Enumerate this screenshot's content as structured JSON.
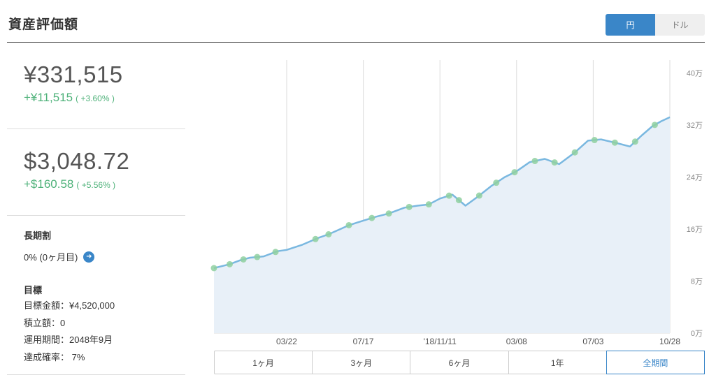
{
  "header": {
    "title": "資産評価額",
    "currency_options": [
      "円",
      "ドル"
    ],
    "currency_selected": "円"
  },
  "summary": {
    "yen": {
      "total": "¥331,515",
      "change": "+¥11,515",
      "change_pct": "( +3.60% )"
    },
    "usd": {
      "total": "$3,048.72",
      "change": "+$160.58",
      "change_pct": "( +5.56% )"
    }
  },
  "long_term": {
    "heading": "長期割",
    "value": "0% (0ヶ月目)",
    "info_icon": "arrow-right-circle-icon"
  },
  "goal": {
    "heading": "目標",
    "lines": [
      "目標金額：¥4,520,000",
      "積立額：0",
      "運用期間：2048年9月",
      "達成確率： 7%"
    ]
  },
  "periods": [
    "1ヶ月",
    "3ヶ月",
    "6ヶ月",
    "1年",
    "全期間"
  ],
  "period_selected": "全期間",
  "colors": {
    "accent": "#3a86c8",
    "positive": "#4fb27a",
    "line": "#7ab8e0",
    "area": "#e8f0f8",
    "markers": "#8fd0a0"
  },
  "chart_data": {
    "type": "line",
    "x_start": "2017-12-01",
    "x_end": "2019-10-28",
    "x_tick_labels": [
      "03/22",
      "07/17",
      "'18/11/11",
      "03/08",
      "07/03",
      "10/28"
    ],
    "x_tick_dates": [
      "2018-03-22",
      "2018-07-17",
      "2018-11-11",
      "2019-03-08",
      "2019-07-03",
      "2019-10-28"
    ],
    "y_unit": "万",
    "y_ticks": [
      0,
      8,
      16,
      24,
      32,
      40
    ],
    "y_tick_labels": [
      "0万",
      "8万",
      "16万",
      "24万",
      "32万",
      "40万"
    ],
    "ylim": [
      0,
      42
    ],
    "grid": true,
    "series": [
      {
        "values": [
          {
            "x": "2017-12-01",
            "y": 10.0
          },
          {
            "x": "2017-12-25",
            "y": 10.6
          },
          {
            "x": "2018-01-10",
            "y": 11.2
          },
          {
            "x": "2018-01-25",
            "y": 11.6
          },
          {
            "x": "2018-02-15",
            "y": 11.8
          },
          {
            "x": "2018-03-08",
            "y": 12.6
          },
          {
            "x": "2018-03-22",
            "y": 12.8
          },
          {
            "x": "2018-04-15",
            "y": 13.6
          },
          {
            "x": "2018-05-08",
            "y": 14.6
          },
          {
            "x": "2018-05-25",
            "y": 15.2
          },
          {
            "x": "2018-06-12",
            "y": 16.0
          },
          {
            "x": "2018-06-25",
            "y": 16.6
          },
          {
            "x": "2018-07-17",
            "y": 17.3
          },
          {
            "x": "2018-08-05",
            "y": 17.9
          },
          {
            "x": "2018-08-25",
            "y": 18.4
          },
          {
            "x": "2018-09-18",
            "y": 19.3
          },
          {
            "x": "2018-10-08",
            "y": 19.6
          },
          {
            "x": "2018-10-25",
            "y": 19.8
          },
          {
            "x": "2018-11-11",
            "y": 20.7
          },
          {
            "x": "2018-11-30",
            "y": 21.3
          },
          {
            "x": "2018-12-20",
            "y": 19.6
          },
          {
            "x": "2019-01-08",
            "y": 21.0
          },
          {
            "x": "2019-01-28",
            "y": 22.6
          },
          {
            "x": "2019-02-18",
            "y": 24.0
          },
          {
            "x": "2019-03-08",
            "y": 24.9
          },
          {
            "x": "2019-03-28",
            "y": 26.3
          },
          {
            "x": "2019-04-20",
            "y": 26.8
          },
          {
            "x": "2019-05-12",
            "y": 26.0
          },
          {
            "x": "2019-06-05",
            "y": 27.8
          },
          {
            "x": "2019-06-25",
            "y": 29.6
          },
          {
            "x": "2019-07-15",
            "y": 29.8
          },
          {
            "x": "2019-08-05",
            "y": 29.3
          },
          {
            "x": "2019-08-28",
            "y": 28.7
          },
          {
            "x": "2019-09-15",
            "y": 30.4
          },
          {
            "x": "2019-10-01",
            "y": 31.8
          },
          {
            "x": "2019-10-15",
            "y": 32.6
          },
          {
            "x": "2019-10-28",
            "y": 33.2
          }
        ]
      }
    ],
    "markers": [
      "2017-12-01",
      "2017-12-25",
      "2018-01-15",
      "2018-02-05",
      "2018-03-05",
      "2018-05-05",
      "2018-05-25",
      "2018-06-25",
      "2018-07-30",
      "2018-08-25",
      "2018-09-25",
      "2018-10-25",
      "2018-11-25",
      "2018-12-10",
      "2019-01-10",
      "2019-02-05",
      "2019-03-05",
      "2019-04-05",
      "2019-05-05",
      "2019-06-05",
      "2019-07-05",
      "2019-08-05",
      "2019-09-05",
      "2019-10-05"
    ]
  }
}
